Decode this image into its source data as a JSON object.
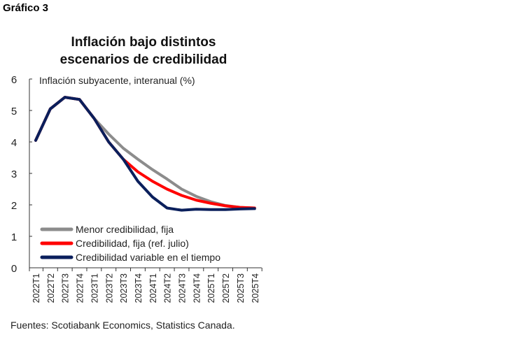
{
  "figure_label": "Gráfico 3",
  "source": "Fuentes: Scotiabank Economics, Statistics Canada.",
  "chart_data": {
    "type": "line",
    "title": "Inflación bajo distintos escenarios de credibilidad",
    "title_lines": [
      "Inflación bajo distintos",
      "escenarios de credibilidad"
    ],
    "ylabel": "Inflación subyacente, interanual (%)",
    "xlabel": "",
    "ylim": [
      0,
      6
    ],
    "yticks": [
      "0",
      "1",
      "2",
      "3",
      "4",
      "5",
      "6"
    ],
    "grid": false,
    "legend_position": "bottom-left",
    "categories": [
      "2022T1",
      "2022T2",
      "2022T3",
      "2022T4",
      "2023T1",
      "2023T2",
      "2023T3",
      "2023T4",
      "2024T1",
      "2024T2",
      "2024T3",
      "2024T4",
      "2025T1",
      "2025T2",
      "2025T3",
      "2025T4"
    ],
    "series": [
      {
        "name": "Menor credibilidad, fija",
        "color": "#8c8c8c",
        "values": [
          4.05,
          5.05,
          5.42,
          5.35,
          4.75,
          4.25,
          3.8,
          3.45,
          3.12,
          2.82,
          2.5,
          2.27,
          2.1,
          1.98,
          1.92,
          1.9
        ]
      },
      {
        "name": "Credibilidad, fija (ref. julio)",
        "color": "#ff0000",
        "values": [
          4.05,
          5.05,
          5.42,
          5.35,
          4.75,
          4.0,
          3.45,
          3.05,
          2.75,
          2.5,
          2.3,
          2.15,
          2.05,
          1.97,
          1.92,
          1.9
        ]
      },
      {
        "name": "Credibilidad variable en el tiempo",
        "color": "#0a1f5c",
        "values": [
          4.05,
          5.05,
          5.42,
          5.35,
          4.75,
          4.0,
          3.45,
          2.75,
          2.25,
          1.9,
          1.83,
          1.86,
          1.85,
          1.85,
          1.87,
          1.88
        ]
      }
    ]
  }
}
